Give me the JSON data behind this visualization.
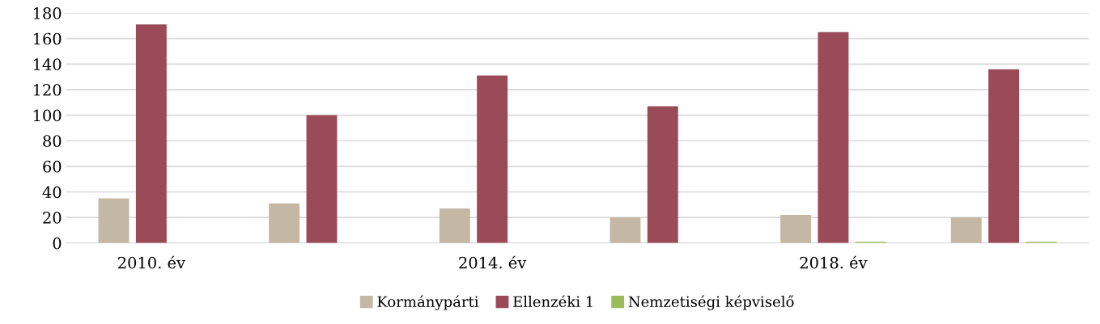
{
  "chart_data": {
    "type": "bar",
    "categories": [
      "2010. év",
      null,
      "2014. év",
      null,
      "2018. év",
      null
    ],
    "series": [
      {
        "name": "Kormánypárti",
        "color": "#c4b8a5",
        "values": [
          35,
          31,
          27,
          20,
          22,
          20
        ]
      },
      {
        "name": "Ellenzéki 1",
        "color": "#9b4a57",
        "values": [
          171,
          100,
          131,
          107,
          165,
          136
        ]
      },
      {
        "name": "Nemzetiségi képviselő",
        "color": "#9bbb59",
        "values": [
          0,
          0,
          0,
          0,
          1,
          1
        ]
      }
    ],
    "ylim": [
      0,
      180
    ],
    "yticks": [
      0,
      20,
      40,
      60,
      80,
      100,
      120,
      140,
      160,
      180
    ],
    "grid": "y",
    "legend": "bottom"
  }
}
